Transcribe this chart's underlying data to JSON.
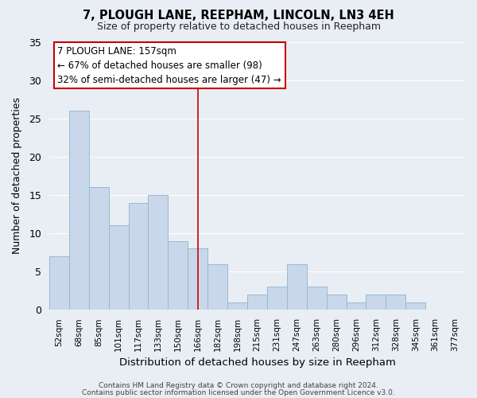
{
  "title": "7, PLOUGH LANE, REEPHAM, LINCOLN, LN3 4EH",
  "subtitle": "Size of property relative to detached houses in Reepham",
  "xlabel": "Distribution of detached houses by size in Reepham",
  "ylabel": "Number of detached properties",
  "bar_labels": [
    "52sqm",
    "68sqm",
    "85sqm",
    "101sqm",
    "117sqm",
    "133sqm",
    "150sqm",
    "166sqm",
    "182sqm",
    "198sqm",
    "215sqm",
    "231sqm",
    "247sqm",
    "263sqm",
    "280sqm",
    "296sqm",
    "312sqm",
    "328sqm",
    "345sqm",
    "361sqm",
    "377sqm"
  ],
  "bar_values": [
    7,
    26,
    16,
    11,
    14,
    15,
    9,
    8,
    6,
    1,
    2,
    3,
    6,
    3,
    2,
    1,
    2,
    2,
    1,
    0,
    0
  ],
  "bar_color": "#c8d8ea",
  "bar_edge_color": "#9ab8d0",
  "vline_x_index": 7,
  "vline_color": "#cc0000",
  "ylim": [
    0,
    35
  ],
  "yticks": [
    0,
    5,
    10,
    15,
    20,
    25,
    30,
    35
  ],
  "annotation_title": "7 PLOUGH LANE: 157sqm",
  "annotation_line1": "← 67% of detached houses are smaller (98)",
  "annotation_line2": "32% of semi-detached houses are larger (47) →",
  "annotation_box_color": "#ffffff",
  "annotation_box_edge": "#cc0000",
  "footer1": "Contains HM Land Registry data © Crown copyright and database right 2024.",
  "footer2": "Contains public sector information licensed under the Open Government Licence v3.0.",
  "background_color": "#e8eef4",
  "plot_bg_color": "#e8eef4",
  "grid_color": "#ffffff",
  "title_fontsize": 10.5,
  "subtitle_fontsize": 9
}
